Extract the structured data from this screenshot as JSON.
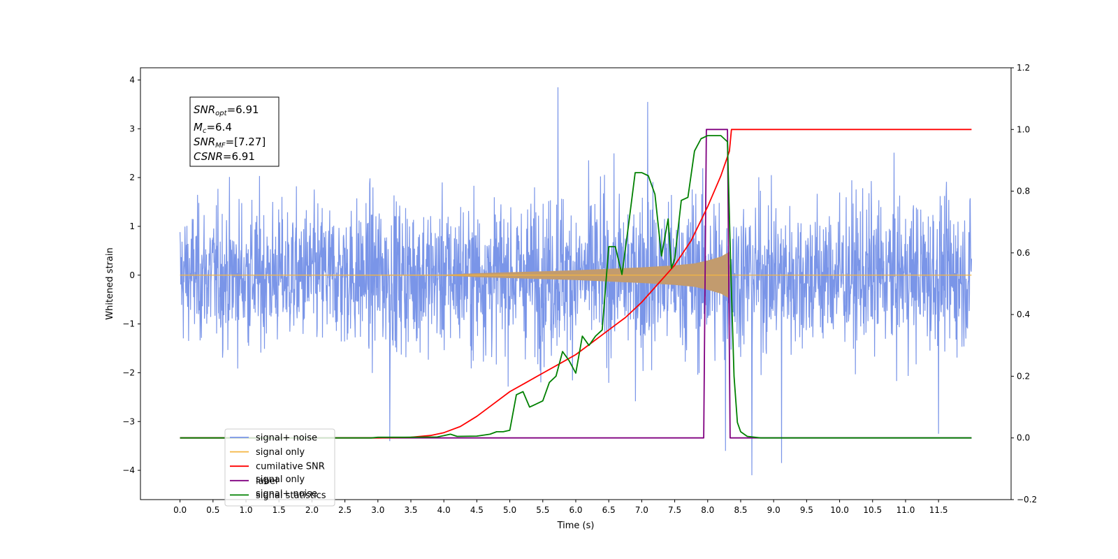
{
  "chart_data": {
    "type": "line",
    "xlabel": "Time (s)",
    "ylabel": "Whitened strain",
    "xlim": [
      -0.6,
      12.6
    ],
    "ylim": [
      -4.6,
      4.25
    ],
    "y2lim": [
      -0.2,
      1.2
    ],
    "x_ticks": [
      0.0,
      0.5,
      1.0,
      1.5,
      2.0,
      2.5,
      3.0,
      3.5,
      4.0,
      4.5,
      5.0,
      5.5,
      6.0,
      6.5,
      7.0,
      7.5,
      8.0,
      8.5,
      9.0,
      9.5,
      10.0,
      10.5,
      11.0,
      11.5
    ],
    "x_tick_labels": [
      "0.0",
      "0.5",
      "1.0",
      "1.5",
      "2.0",
      "2.5",
      "3.0",
      "3.5",
      "4.0",
      "4.5",
      "5.0",
      "5.5",
      "6.0",
      "6.5",
      "7.0",
      "7.5",
      "8.0",
      "8.5",
      "9.0",
      "9.5",
      "10.0",
      "10.5",
      "11.0",
      "11.5"
    ],
    "y_ticks": [
      -4,
      -3,
      -2,
      -1,
      0,
      1,
      2,
      3,
      4
    ],
    "y_tick_labels": [
      "−4",
      "−3",
      "−2",
      "−1",
      "0",
      "1",
      "2",
      "3",
      "4"
    ],
    "y2_ticks": [
      -0.2,
      0.0,
      0.2,
      0.4,
      0.6,
      0.8,
      1.0,
      1.2
    ],
    "y2_tick_labels": [
      "−0.2",
      "0.0",
      "0.2",
      "0.4",
      "0.6",
      "0.8",
      "1.0",
      "1.2"
    ],
    "grid": false,
    "legend_position": "lower-left",
    "annotation": [
      {
        "main": "SNR",
        "sub": "opt",
        "rest": "=6.91"
      },
      {
        "main": "M",
        "sub": "c",
        "rest": "=6.4"
      },
      {
        "main": "SNR",
        "sub": "MF",
        "rest": "=[7.27]"
      },
      {
        "main": "CSNR",
        "sub": "",
        "rest": "=6.91"
      }
    ],
    "series": [
      {
        "name": "signal+ noise",
        "color": "#7a95e8",
        "axis": "left",
        "envelope": {
          "x": [
            0.0,
            0.5,
            1.0,
            1.5,
            2.0,
            2.5,
            3.0,
            3.5,
            4.0,
            4.5,
            5.0,
            5.5,
            6.0,
            6.5,
            7.0,
            7.5,
            8.0,
            8.5,
            9.0,
            9.5,
            10.0,
            10.5,
            11.0,
            11.5,
            12.0
          ],
          "upper": [
            2.3,
            2.2,
            2.6,
            2.4,
            2.5,
            2.4,
            2.8,
            2.6,
            2.5,
            2.6,
            2.7,
            2.9,
            2.7,
            2.8,
            3.1,
            2.8,
            2.9,
            2.7,
            2.6,
            2.6,
            2.7,
            2.8,
            2.6,
            2.6,
            2.4
          ],
          "lower": [
            -2.2,
            -2.5,
            -2.6,
            -2.3,
            -2.4,
            -2.5,
            -2.6,
            -2.4,
            -2.5,
            -2.7,
            -2.3,
            -2.6,
            -2.7,
            -2.4,
            -2.5,
            -2.6,
            -2.5,
            -2.8,
            -2.6,
            -2.6,
            -2.4,
            -2.5,
            -2.7,
            -2.6,
            -2.3
          ],
          "max": 3.85,
          "min": -4.1
        }
      },
      {
        "name": "signal only",
        "color": "#f5b642",
        "axis": "left",
        "fill_color": "#c29b6e",
        "x": [
          0.0,
          4.0,
          4.5,
          5.0,
          5.5,
          6.0,
          6.5,
          7.0,
          7.5,
          7.8,
          8.0,
          8.2,
          8.33,
          8.34,
          12.0
        ],
        "amp": [
          0.0,
          0.01,
          0.04,
          0.06,
          0.08,
          0.1,
          0.13,
          0.16,
          0.2,
          0.24,
          0.3,
          0.38,
          0.48,
          0.0,
          0.0
        ]
      },
      {
        "name": "cumilative SNR",
        "color": "#ff0000",
        "axis": "right",
        "x": [
          0.0,
          3.0,
          3.5,
          3.8,
          4.0,
          4.25,
          4.5,
          4.75,
          5.0,
          5.25,
          5.5,
          5.75,
          6.0,
          6.25,
          6.5,
          6.75,
          7.0,
          7.25,
          7.5,
          7.75,
          8.0,
          8.2,
          8.33,
          8.36,
          12.0
        ],
        "y": [
          0.0,
          0.0,
          0.002,
          0.008,
          0.017,
          0.037,
          0.07,
          0.11,
          0.15,
          0.18,
          0.21,
          0.24,
          0.27,
          0.31,
          0.35,
          0.39,
          0.44,
          0.5,
          0.56,
          0.64,
          0.75,
          0.85,
          0.93,
          1.0,
          1.0
        ]
      },
      {
        "name": "label",
        "color": "#800080",
        "axis": "right",
        "x": [
          0.0,
          7.94,
          7.98,
          8.3,
          8.34,
          12.0
        ],
        "y": [
          0.0,
          0.0,
          1.0,
          1.0,
          0.0,
          0.0
        ]
      },
      {
        "name": "signal statistics",
        "color": "#008000",
        "axis": "right",
        "x": [
          0.0,
          2.9,
          3.0,
          3.4,
          3.9,
          4.1,
          4.2,
          4.5,
          4.7,
          4.8,
          4.9,
          5.0,
          5.1,
          5.2,
          5.3,
          5.4,
          5.5,
          5.6,
          5.7,
          5.8,
          5.9,
          6.0,
          6.1,
          6.2,
          6.3,
          6.4,
          6.5,
          6.6,
          6.7,
          6.8,
          6.9,
          7.0,
          7.1,
          7.2,
          7.3,
          7.4,
          7.45,
          7.5,
          7.6,
          7.7,
          7.8,
          7.9,
          8.0,
          8.1,
          8.2,
          8.3,
          8.35,
          8.4,
          8.45,
          8.5,
          8.6,
          8.8,
          12.0
        ],
        "y": [
          0.0,
          0.0,
          0.002,
          0.002,
          0.003,
          0.012,
          0.005,
          0.006,
          0.012,
          0.02,
          0.02,
          0.025,
          0.14,
          0.15,
          0.1,
          0.11,
          0.12,
          0.18,
          0.2,
          0.28,
          0.25,
          0.21,
          0.33,
          0.3,
          0.33,
          0.35,
          0.62,
          0.62,
          0.53,
          0.69,
          0.86,
          0.86,
          0.85,
          0.79,
          0.59,
          0.71,
          0.55,
          0.58,
          0.77,
          0.78,
          0.93,
          0.97,
          0.98,
          0.98,
          0.98,
          0.96,
          0.55,
          0.2,
          0.05,
          0.02,
          0.005,
          0.0,
          0.0
        ]
      }
    ],
    "legend": [
      {
        "label": "signal+ noise",
        "color": "#7a95e8"
      },
      {
        "label": "signal only",
        "color": "#f5b642"
      },
      {
        "label": "cumilative SNR",
        "color": "#ff0000"
      },
      {
        "label": "label",
        "color": "#800080"
      },
      {
        "label": "signal statistics",
        "color": "#008000"
      }
    ],
    "legend_ghost_text": [
      {
        "text": "signal only",
        "under": 3
      },
      {
        "text": "signal+ noise",
        "under": 4
      }
    ]
  }
}
